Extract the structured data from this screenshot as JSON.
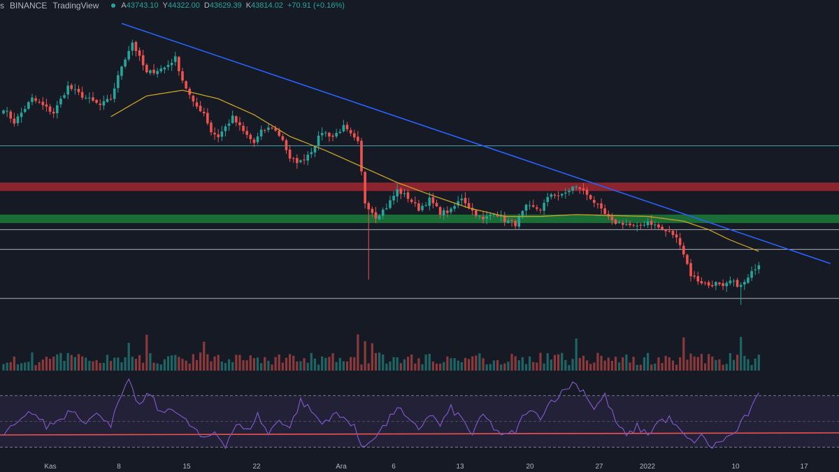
{
  "header": {
    "symbol_fragment": "s",
    "exchange": "BINANCE",
    "brand": "TradingView",
    "ohlc": [
      {
        "key": "A",
        "value": "43743.10"
      },
      {
        "key": "Y",
        "value": "44322.00"
      },
      {
        "key": "D",
        "value": "43629.39"
      },
      {
        "key": "K",
        "value": "43814.02"
      }
    ],
    "change": "+70.91 (+0.16%)"
  },
  "colors": {
    "background": "#161a25",
    "up": "#26a69a",
    "down": "#ef5350",
    "trendline": "#2962ff",
    "moving_average": "#c9a227",
    "rsi": "#7e57c2",
    "resistance_zone": "#b22833",
    "support_zone": "#1e8a3c",
    "level_cyan": "#4fb3bf",
    "level_white": "#c8cad0"
  },
  "chart_data": [
    {
      "type": "candlestick",
      "x_tick_labels": [
        "Kas",
        "8",
        "15",
        "22",
        "Ara",
        "6",
        "13",
        "20",
        "27",
        "2022",
        "10",
        "17"
      ],
      "ylim": [
        38200,
        70500
      ],
      "candles_anchor_path": [
        [
          0,
          60500
        ],
        [
          3,
          59000
        ],
        [
          8,
          61500
        ],
        [
          14,
          60000
        ],
        [
          18,
          62800
        ],
        [
          22,
          61800
        ],
        [
          27,
          60800
        ],
        [
          30,
          61500
        ],
        [
          33,
          65000
        ],
        [
          36,
          67500
        ],
        [
          40,
          64200
        ],
        [
          45,
          64800
        ],
        [
          48,
          65800
        ],
        [
          50,
          63500
        ],
        [
          53,
          61000
        ],
        [
          56,
          60000
        ],
        [
          58,
          58000
        ],
        [
          60,
          57500
        ],
        [
          64,
          59500
        ],
        [
          67,
          58000
        ],
        [
          70,
          56800
        ],
        [
          72,
          58000
        ],
        [
          75,
          58500
        ],
        [
          78,
          57200
        ],
        [
          80,
          55000
        ],
        [
          83,
          54800
        ],
        [
          86,
          56000
        ],
        [
          89,
          58000
        ],
        [
          92,
          57500
        ],
        [
          95,
          58500
        ],
        [
          98,
          57200
        ],
        [
          99,
          56800
        ],
        [
          101,
          50500
        ],
        [
          104,
          49000
        ],
        [
          107,
          50000
        ],
        [
          110,
          51800
        ],
        [
          113,
          51000
        ],
        [
          116,
          49800
        ],
        [
          119,
          50800
        ],
        [
          122,
          49400
        ],
        [
          125,
          49600
        ],
        [
          128,
          51000
        ],
        [
          131,
          49600
        ],
        [
          134,
          48600
        ],
        [
          137,
          49500
        ],
        [
          140,
          48600
        ],
        [
          143,
          48200
        ],
        [
          146,
          50000
        ],
        [
          150,
          49800
        ],
        [
          153,
          51400
        ],
        [
          156,
          51200
        ],
        [
          159,
          52100
        ],
        [
          161,
          52000
        ],
        [
          164,
          51000
        ],
        [
          167,
          49600
        ],
        [
          170,
          48400
        ],
        [
          173,
          48300
        ],
        [
          177,
          47800
        ],
        [
          180,
          48500
        ],
        [
          184,
          47600
        ],
        [
          187,
          47100
        ],
        [
          189,
          46200
        ],
        [
          192,
          42800
        ],
        [
          194,
          42200
        ],
        [
          197,
          41700
        ],
        [
          199,
          41900
        ],
        [
          201,
          41400
        ],
        [
          203,
          42100
        ],
        [
          206,
          41600
        ],
        [
          208,
          42400
        ],
        [
          210,
          43600
        ],
        [
          211,
          43814
        ]
      ],
      "moving_average_anchors": [
        [
          30,
          59600
        ],
        [
          40,
          61800
        ],
        [
          50,
          62400
        ],
        [
          60,
          61500
        ],
        [
          70,
          59800
        ],
        [
          80,
          57500
        ],
        [
          90,
          56000
        ],
        [
          100,
          54300
        ],
        [
          110,
          52600
        ],
        [
          120,
          51200
        ],
        [
          130,
          49900
        ],
        [
          140,
          49000
        ],
        [
          150,
          49000
        ],
        [
          160,
          49200
        ],
        [
          170,
          49100
        ],
        [
          180,
          49000
        ],
        [
          190,
          48500
        ],
        [
          197,
          47600
        ],
        [
          203,
          46500
        ],
        [
          211,
          45300
        ]
      ],
      "trendline": {
        "from": [
          33,
          69500
        ],
        "to": [
          231,
          44000
        ]
      },
      "zones": [
        {
          "name": "resistance",
          "from": 51700,
          "to": 52600
        },
        {
          "name": "support",
          "from": 48300,
          "to": 49200
        }
      ],
      "horizontal_levels": [
        {
          "name": "cyan",
          "value": 56500
        },
        {
          "name": "white-upper",
          "value": 47600
        },
        {
          "name": "white-mid",
          "value": 45500
        },
        {
          "name": "white-lower",
          "value": 40300
        }
      ]
    },
    {
      "type": "bar",
      "series": "volume"
    },
    {
      "type": "line",
      "series": "rsi",
      "ylim": [
        20,
        85
      ],
      "anchors": [
        [
          0,
          40
        ],
        [
          4,
          48
        ],
        [
          8,
          58
        ],
        [
          12,
          46
        ],
        [
          16,
          52
        ],
        [
          19,
          60
        ],
        [
          23,
          50
        ],
        [
          27,
          56
        ],
        [
          30,
          48
        ],
        [
          33,
          70
        ],
        [
          35,
          80
        ],
        [
          38,
          62
        ],
        [
          41,
          72
        ],
        [
          44,
          55
        ],
        [
          47,
          62
        ],
        [
          50,
          52
        ],
        [
          53,
          45
        ],
        [
          56,
          35
        ],
        [
          59,
          42
        ],
        [
          62,
          32
        ],
        [
          65,
          48
        ],
        [
          68,
          42
        ],
        [
          71,
          55
        ],
        [
          74,
          40
        ],
        [
          77,
          52
        ],
        [
          80,
          45
        ],
        [
          83,
          66
        ],
        [
          86,
          58
        ],
        [
          89,
          48
        ],
        [
          92,
          56
        ],
        [
          95,
          52
        ],
        [
          98,
          48
        ],
        [
          100,
          28
        ],
        [
          104,
          40
        ],
        [
          107,
          48
        ],
        [
          110,
          62
        ],
        [
          113,
          50
        ],
        [
          116,
          44
        ],
        [
          119,
          56
        ],
        [
          122,
          47
        ],
        [
          125,
          60
        ],
        [
          128,
          52
        ],
        [
          131,
          40
        ],
        [
          134,
          55
        ],
        [
          137,
          45
        ],
        [
          140,
          38
        ],
        [
          143,
          42
        ],
        [
          146,
          58
        ],
        [
          150,
          54
        ],
        [
          153,
          66
        ],
        [
          156,
          72
        ],
        [
          159,
          80
        ],
        [
          162,
          74
        ],
        [
          165,
          60
        ],
        [
          168,
          70
        ],
        [
          171,
          50
        ],
        [
          174,
          38
        ],
        [
          177,
          46
        ],
        [
          180,
          40
        ],
        [
          183,
          50
        ],
        [
          186,
          52
        ],
        [
          189,
          42
        ],
        [
          192,
          34
        ],
        [
          195,
          38
        ],
        [
          198,
          30
        ],
        [
          201,
          36
        ],
        [
          204,
          40
        ],
        [
          207,
          52
        ],
        [
          209,
          60
        ],
        [
          211,
          70
        ]
      ],
      "hlines": [
        {
          "name": "overbought",
          "value": 70
        },
        {
          "name": "middle",
          "value": 50
        },
        {
          "name": "oversold",
          "value": 30
        }
      ]
    }
  ]
}
